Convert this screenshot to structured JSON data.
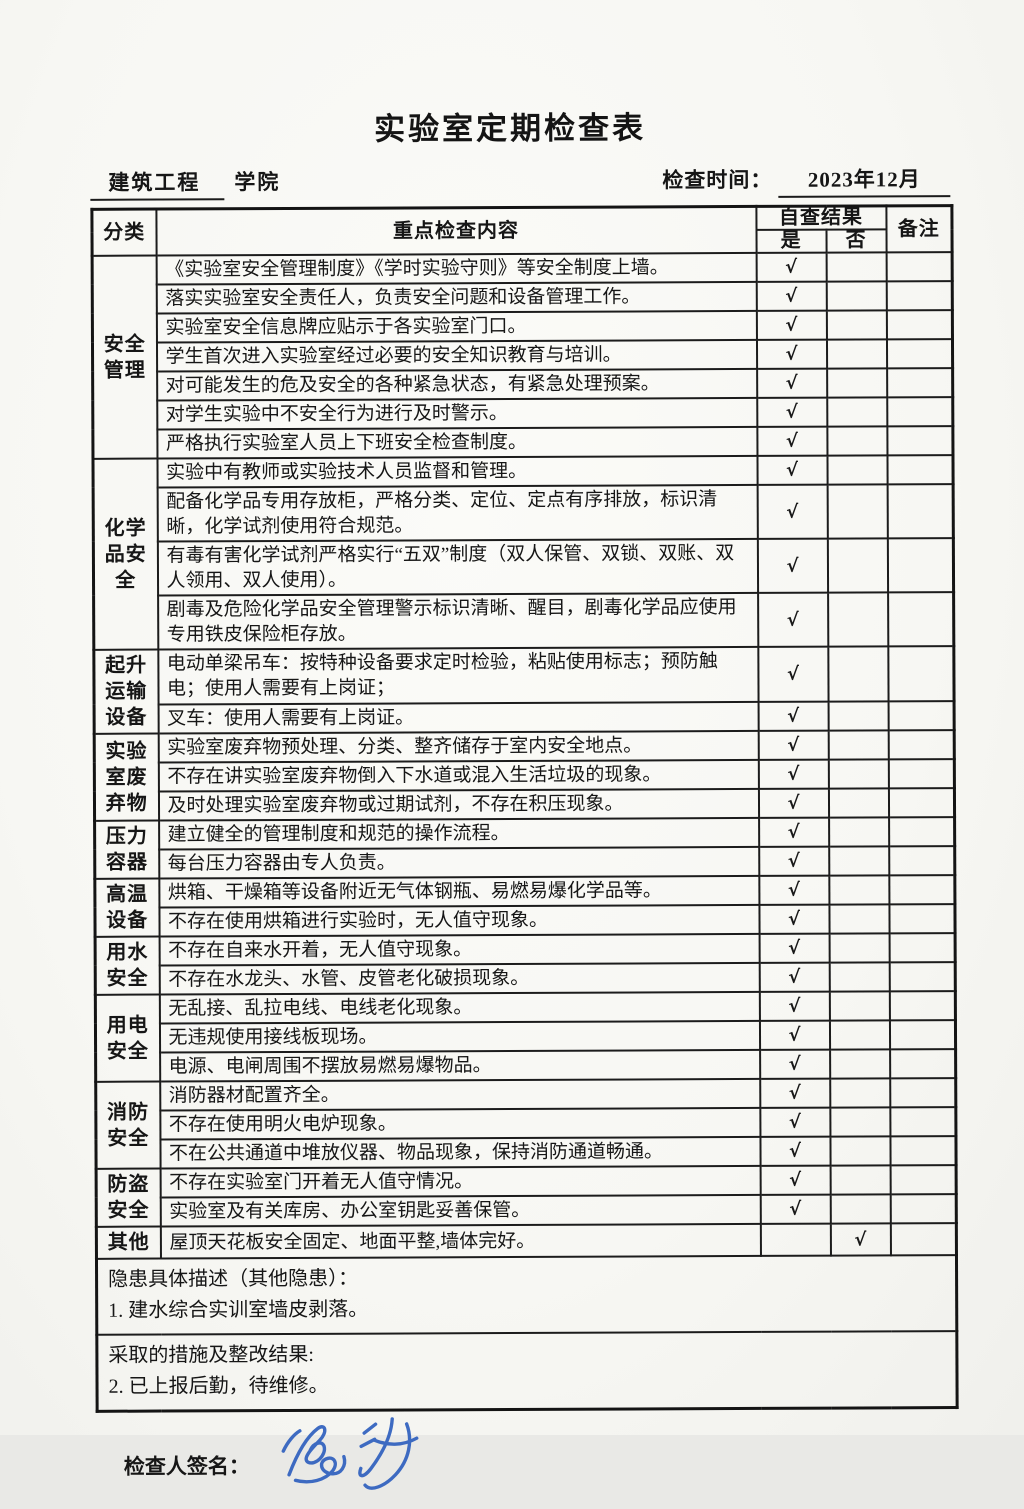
{
  "page_title": "实验室定期检查表",
  "header": {
    "college_name": "建筑工程",
    "college_suffix": "学院",
    "check_time_label": "检查时间：",
    "check_time_value": "2023年12月"
  },
  "table": {
    "col_category": "分类",
    "col_content": "重点检查内容",
    "col_result": "自查结果",
    "col_yes": "是",
    "col_no": "否",
    "col_remark": "备注",
    "check_mark": "√",
    "groups": [
      {
        "category": "安全管理",
        "rows": [
          {
            "content": "《实验室安全管理制度》《学时实验守则》等安全制度上墙。",
            "result": "yes"
          },
          {
            "content": "落实实验室安全责任人，负责安全问题和设备管理工作。",
            "result": "yes"
          },
          {
            "content": "实验室安全信息牌应贴示于各实验室门口。",
            "result": "yes"
          },
          {
            "content": "学生首次进入实验室经过必要的安全知识教育与培训。",
            "result": "yes"
          },
          {
            "content": "对可能发生的危及安全的各种紧急状态，有紧急处理预案。",
            "result": "yes"
          },
          {
            "content": "对学生实验中不安全行为进行及时警示。",
            "result": "yes"
          },
          {
            "content": "严格执行实验室人员上下班安全检查制度。",
            "result": "yes"
          }
        ]
      },
      {
        "category": "化学品安全",
        "rows": [
          {
            "content": "实验中有教师或实验技术人员监督和管理。",
            "result": "yes"
          },
          {
            "content": "配备化学品专用存放柜，严格分类、定位、定点有序排放，标识清晰，化学试剂使用符合规范。",
            "result": "yes"
          },
          {
            "content": "有毒有害化学试剂严格实行“五双”制度（双人保管、双锁、双账、双人领用、双人使用）。",
            "result": "yes"
          },
          {
            "content": "剧毒及危险化学品安全管理警示标识清晰、醒目，剧毒化学品应使用专用铁皮保险柜存放。",
            "result": "yes"
          }
        ]
      },
      {
        "category": "起升运输设备",
        "rows": [
          {
            "content": "电动单梁吊车：按特种设备要求定时检验，粘贴使用标志；预防触电；使用人需要有上岗证；",
            "result": "yes"
          },
          {
            "content": "叉车：使用人需要有上岗证。",
            "result": "yes"
          }
        ]
      },
      {
        "category": "实验室废弃物",
        "rows": [
          {
            "content": "实验室废弃物预处理、分类、整齐储存于室内安全地点。",
            "result": "yes"
          },
          {
            "content": "不存在讲实验室废弃物倒入下水道或混入生活垃圾的现象。",
            "result": "yes"
          },
          {
            "content": "及时处理实验室废弃物或过期试剂，不存在积压现象。",
            "result": "yes"
          }
        ]
      },
      {
        "category": "压力容器",
        "rows": [
          {
            "content": "建立健全的管理制度和规范的操作流程。",
            "result": "yes"
          },
          {
            "content": "每台压力容器由专人负责。",
            "result": "yes"
          }
        ]
      },
      {
        "category": "高温设备",
        "rows": [
          {
            "content": "烘箱、干燥箱等设备附近无气体钢瓶、易燃易爆化学品等。",
            "result": "yes"
          },
          {
            "content": "不存在使用烘箱进行实验时，无人值守现象。",
            "result": "yes"
          }
        ]
      },
      {
        "category": "用水安全",
        "rows": [
          {
            "content": "不存在自来水开着，无人值守现象。",
            "result": "yes"
          },
          {
            "content": "不存在水龙头、水管、皮管老化破损现象。",
            "result": "yes"
          }
        ]
      },
      {
        "category": "用电安全",
        "rows": [
          {
            "content": "无乱接、乱拉电线、电线老化现象。",
            "result": "yes"
          },
          {
            "content": "无违规使用接线板现场。",
            "result": "yes"
          },
          {
            "content": "电源、电闸周围不摆放易燃易爆物品。",
            "result": "yes"
          }
        ]
      },
      {
        "category": "消防安全",
        "rows": [
          {
            "content": "消防器材配置齐全。",
            "result": "yes"
          },
          {
            "content": "不存在使用明火电炉现象。",
            "result": "yes"
          },
          {
            "content": "不在公共通道中堆放仪器、物品现象，保持消防通道畅通。",
            "result": "yes"
          }
        ]
      },
      {
        "category": "防盗安全",
        "rows": [
          {
            "content": "不存在实验室门开着无人值守情况。",
            "result": "yes"
          },
          {
            "content": "实验室及有关库房、办公室钥匙妥善保管。",
            "result": "yes"
          }
        ]
      },
      {
        "category": "其他",
        "rows": [
          {
            "content": "屋顶天花板安全固定、地面平整,墙体完好。",
            "result": "no"
          }
        ]
      }
    ],
    "hazard_block": {
      "title": "隐患具体描述（其他隐患）：",
      "line": "1. 建水综合实训室墙皮剥落。"
    },
    "measures_block": {
      "title": "采取的措施及整改结果:",
      "line": "2. 已上报后勤，待维修。"
    }
  },
  "footer": {
    "inspector_label": "检查人签名："
  },
  "colors": {
    "ink": "#1c1c1c",
    "signature_blue": "#2e5fbe",
    "paper": "#f7f7f3"
  }
}
